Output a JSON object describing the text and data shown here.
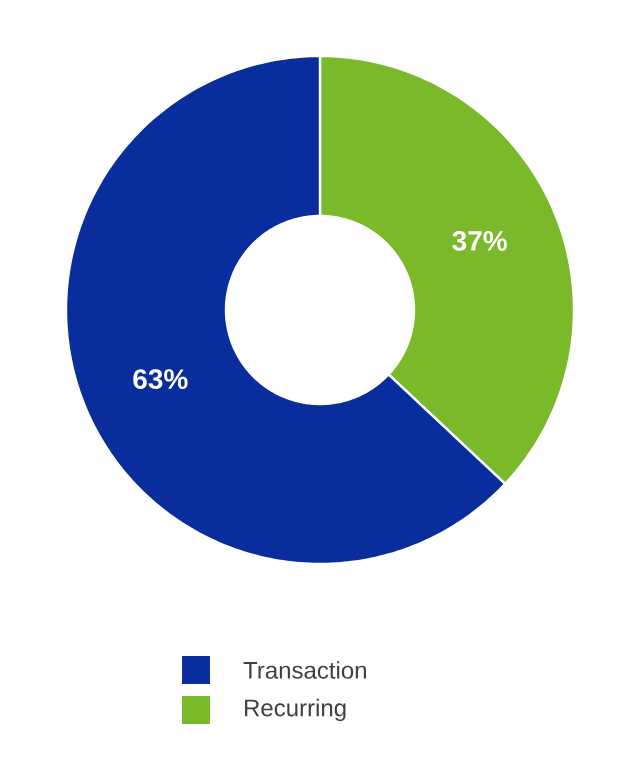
{
  "chart_data": {
    "type": "donut",
    "categories": [
      "Recurring",
      "Transaction"
    ],
    "values": [
      37,
      63
    ],
    "colors": [
      "#7ab929",
      "#0a2d9e"
    ],
    "value_labels": [
      "37%",
      "63%"
    ],
    "legend": "bottom"
  }
}
